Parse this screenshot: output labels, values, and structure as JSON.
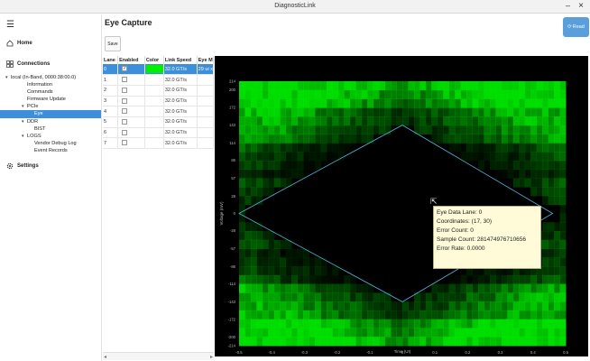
{
  "window": {
    "title": "DiagnosticLink",
    "minimize": "–",
    "close": "×"
  },
  "sidebar": {
    "menu_icon": "☰",
    "home": {
      "icon": "home-icon",
      "label": "Home"
    },
    "connections": {
      "icon": "connections-icon",
      "label": "Connections"
    },
    "settings": {
      "icon": "gear-icon",
      "label": "Settings"
    },
    "tree": [
      {
        "label": "local (In-Band, 0000:38:00.0)",
        "indent": 12,
        "expanded": true
      },
      {
        "label": "Information",
        "indent": 30
      },
      {
        "label": "Commands",
        "indent": 30
      },
      {
        "label": "Firmware Update",
        "indent": 30
      },
      {
        "label": "PCIe",
        "indent": 30,
        "expanded": true
      },
      {
        "label": "Eye",
        "indent": 38,
        "selected": true
      },
      {
        "label": "DDR",
        "indent": 30,
        "expanded": true
      },
      {
        "label": "BIST",
        "indent": 38
      },
      {
        "label": "LOGS",
        "indent": 30,
        "expanded": true
      },
      {
        "label": "Vendor Debug Log",
        "indent": 38
      },
      {
        "label": "Event Records",
        "indent": 38
      }
    ]
  },
  "main": {
    "title": "Eye Capture",
    "read_label": "Read",
    "save_label": "Save"
  },
  "table": {
    "headers": [
      "Lane",
      "Enabled",
      "Color",
      "Link Speed",
      "Eye M"
    ],
    "rows": [
      {
        "lane": "0",
        "enabled": "✓",
        "speed": "32.0 GT/s",
        "eye": "29 ui x",
        "color": "#00ee00"
      },
      {
        "lane": "1",
        "enabled": "",
        "speed": "32.0 GT/s",
        "eye": ""
      },
      {
        "lane": "2",
        "enabled": "",
        "speed": "32.0 GT/s",
        "eye": ""
      },
      {
        "lane": "3",
        "enabled": "",
        "speed": "32.0 GT/s",
        "eye": ""
      },
      {
        "lane": "4",
        "enabled": "",
        "speed": "32.0 GT/s",
        "eye": ""
      },
      {
        "lane": "5",
        "enabled": "",
        "speed": "32.0 GT/s",
        "eye": ""
      },
      {
        "lane": "6",
        "enabled": "",
        "speed": "32.0 GT/s",
        "eye": ""
      },
      {
        "lane": "7",
        "enabled": "",
        "speed": "32.0 GT/s",
        "eye": ""
      }
    ],
    "scroll_left": "◂",
    "scroll_right": "▸"
  },
  "chart_data": {
    "type": "heatmap",
    "xlabel": "Time (UI)",
    "ylabel": "Voltage (mV)",
    "xlim": [
      -0.5,
      0.5
    ],
    "ylim": [
      -214,
      214
    ],
    "x_ticks": [
      "-0.5",
      "-0.4",
      "-0.3",
      "-0.2",
      "-0.1",
      "0",
      "0.1",
      "0.2",
      "0.3",
      "0.4",
      "0.5"
    ],
    "y_ticks": [
      "214",
      "200",
      "172",
      "143",
      "114",
      "86",
      "57",
      "28",
      "0",
      "-28",
      "-57",
      "-86",
      "-114",
      "-143",
      "-172",
      "-200",
      "-214"
    ],
    "eye_boundary": {
      "left": [
        -0.5,
        0
      ],
      "top": [
        0,
        143
      ],
      "right": [
        0.46,
        0
      ],
      "bottom": [
        0,
        -143
      ]
    },
    "colors": {
      "background": "#000000",
      "heat": "#00cc00",
      "eye_outline": "#4fb3d9"
    }
  },
  "tooltip": {
    "lines": [
      "Eye Data Lane: 0",
      "Coordinates: (17, 30)",
      "Error Count: 0",
      "Sample Count: 281474976710656",
      "Error Rate: 0.0000"
    ]
  }
}
